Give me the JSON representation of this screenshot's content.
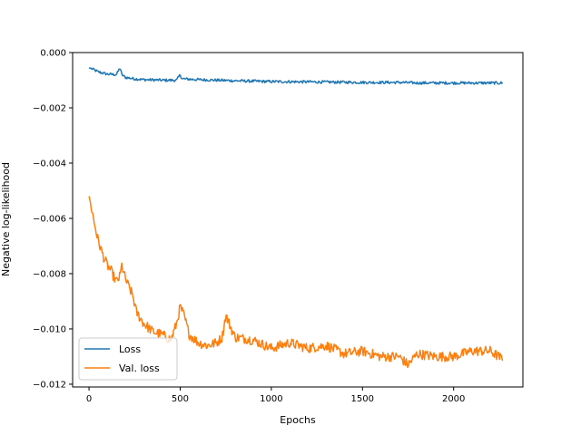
{
  "chart_data": {
    "type": "line",
    "xlabel": "Epochs",
    "ylabel": "Negative log-likelihood",
    "xlim": [
      -90,
      2380
    ],
    "ylim": [
      -0.0121,
      0.0
    ],
    "x_ticks": [
      0,
      500,
      1000,
      1500,
      2000
    ],
    "x_tick_labels": [
      "0",
      "500",
      "1000",
      "1500",
      "2000"
    ],
    "y_ticks": [
      0.0,
      -0.002,
      -0.004,
      -0.006,
      -0.008,
      -0.01,
      -0.012
    ],
    "y_tick_labels": [
      "0.000",
      "−0.002",
      "−0.004",
      "−0.006",
      "−0.008",
      "−0.010",
      "−0.012"
    ],
    "grid": false,
    "legend_position": "lower-left",
    "series": [
      {
        "name": "Loss",
        "color": "#1f77b4",
        "noise": 5e-05,
        "x": [
          0,
          20,
          50,
          100,
          150,
          170,
          180,
          200,
          250,
          300,
          400,
          480,
          500,
          510,
          600,
          800,
          1000,
          1200,
          1500,
          1700,
          1800,
          2000,
          2100,
          2200,
          2270
        ],
        "y": [
          -0.00055,
          -0.0006,
          -0.0007,
          -0.00078,
          -0.0008,
          -0.00055,
          -0.0008,
          -0.0009,
          -0.00095,
          -0.00098,
          -0.001,
          -0.001,
          -0.0008,
          -0.00095,
          -0.00098,
          -0.00102,
          -0.00105,
          -0.00106,
          -0.00108,
          -0.00108,
          -0.0011,
          -0.0011,
          -0.0011,
          -0.0011,
          -0.0011
        ]
      },
      {
        "name": "Val. loss",
        "color": "#ff7f0e",
        "noise": 0.00018,
        "x": [
          0,
          10,
          30,
          50,
          60,
          80,
          100,
          120,
          150,
          170,
          180,
          200,
          220,
          240,
          260,
          300,
          350,
          400,
          450,
          480,
          500,
          520,
          550,
          600,
          650,
          700,
          730,
          750,
          800,
          900,
          1000,
          1100,
          1200,
          1300,
          1400,
          1500,
          1600,
          1700,
          1750,
          1800,
          1900,
          2000,
          2100,
          2200,
          2270
        ],
        "y": [
          -0.0052,
          -0.0055,
          -0.0062,
          -0.0068,
          -0.007,
          -0.0074,
          -0.0077,
          -0.0079,
          -0.0083,
          -0.0081,
          -0.0077,
          -0.0082,
          -0.0085,
          -0.0088,
          -0.0094,
          -0.0098,
          -0.0101,
          -0.0102,
          -0.0104,
          -0.0098,
          -0.0092,
          -0.0095,
          -0.0102,
          -0.0105,
          -0.0106,
          -0.0105,
          -0.0103,
          -0.0095,
          -0.0103,
          -0.0104,
          -0.0107,
          -0.0105,
          -0.0107,
          -0.0106,
          -0.0109,
          -0.0108,
          -0.011,
          -0.011,
          -0.0113,
          -0.0109,
          -0.011,
          -0.011,
          -0.0108,
          -0.0108,
          -0.0111
        ]
      }
    ]
  }
}
